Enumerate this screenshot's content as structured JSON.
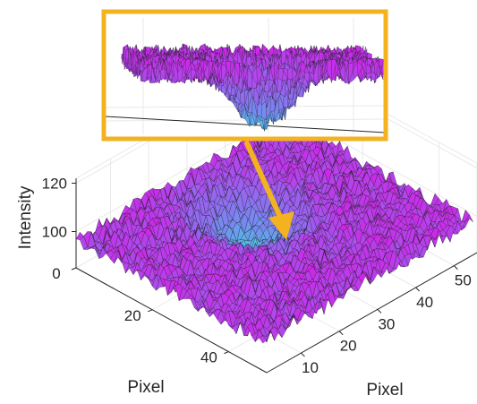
{
  "chart_data": {
    "type": "surface",
    "title": "",
    "xlabel": "Pixel",
    "ylabel": "Pixel",
    "zlabel": "Intensity",
    "x_ticks": [
      10,
      20,
      30,
      40,
      50
    ],
    "y_ticks": [
      0,
      20,
      40
    ],
    "z_ticks": [
      100,
      120
    ],
    "xlim": [
      1,
      56
    ],
    "ylim": [
      0,
      50
    ],
    "zlim": [
      85,
      122
    ],
    "grid": true,
    "colormap": [
      "#dd15e6",
      "#9e5df0",
      "#7a85ef",
      "#38e6e6"
    ],
    "surface_baseline": 97,
    "dip": {
      "x_center": 30,
      "y_center": 16,
      "depth": 15,
      "sigma_x": 6,
      "sigma_y": 7
    },
    "inset": {
      "frame_color": "#f3b21f",
      "description_color": "#f3b21f"
    },
    "arrow_color": "#f3b21f"
  }
}
